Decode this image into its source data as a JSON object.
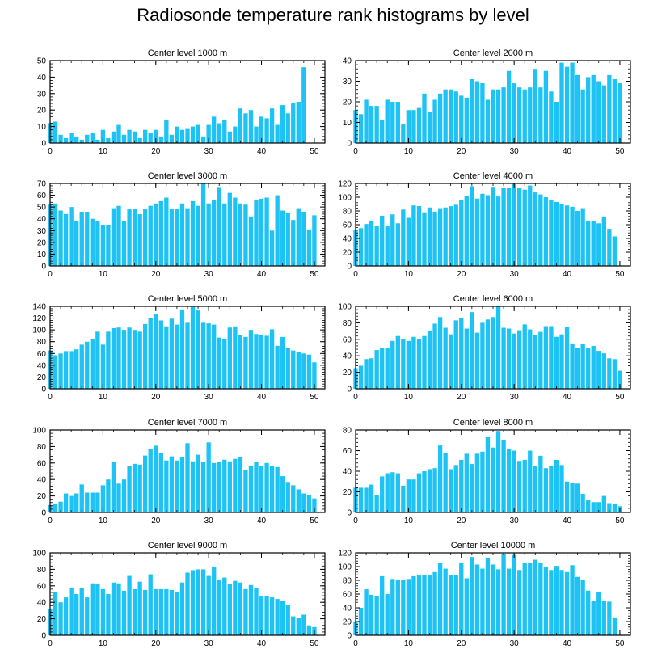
{
  "title": "Radiosonde temperature rank histograms by level",
  "colors": {
    "bar": "#1ec3f5",
    "bar_edge": "#ffffff",
    "axis": "#000000"
  },
  "chart_data": [
    {
      "type": "bar",
      "title": "Center level 1000 m",
      "xlim": [
        0,
        52
      ],
      "ylim": [
        0,
        50
      ],
      "xticks": [
        0,
        10,
        20,
        30,
        40,
        50
      ],
      "yticks": [
        0,
        10,
        20,
        30,
        40,
        50
      ],
      "values": [
        12,
        13,
        5,
        3,
        6,
        4,
        2,
        5,
        6,
        2,
        8,
        3,
        7,
        11,
        5,
        8,
        7,
        3,
        8,
        6,
        8,
        4,
        14,
        5,
        10,
        8,
        9,
        10,
        11,
        4,
        11,
        16,
        12,
        14,
        7,
        10,
        21,
        18,
        20,
        10,
        16,
        15,
        21,
        11,
        23,
        18,
        24,
        25,
        46
      ]
    },
    {
      "type": "bar",
      "title": "Center level 2000 m",
      "xlim": [
        0,
        52
      ],
      "ylim": [
        0,
        40
      ],
      "xticks": [
        0,
        10,
        20,
        30,
        40,
        50
      ],
      "yticks": [
        0,
        10,
        20,
        30,
        40
      ],
      "values": [
        16,
        14,
        21,
        18,
        18,
        11,
        21,
        20,
        20,
        9,
        16,
        16,
        17,
        24,
        15,
        21,
        24,
        26,
        26,
        25,
        23,
        22,
        31,
        30,
        29,
        21,
        26,
        26,
        27,
        35,
        29,
        27,
        26,
        27,
        36,
        27,
        35,
        25,
        20,
        39,
        37,
        39,
        33,
        26,
        32,
        33,
        30,
        28,
        33,
        31,
        29
      ]
    },
    {
      "type": "bar",
      "title": "Center level 3000 m",
      "xlim": [
        0,
        52
      ],
      "ylim": [
        0,
        70
      ],
      "xticks": [
        0,
        10,
        20,
        30,
        40,
        50
      ],
      "yticks": [
        0,
        10,
        20,
        30,
        40,
        50,
        60,
        70
      ],
      "values": [
        52,
        53,
        47,
        44,
        50,
        38,
        46,
        46,
        40,
        38,
        35,
        35,
        49,
        51,
        38,
        48,
        48,
        44,
        48,
        51,
        53,
        55,
        58,
        48,
        48,
        53,
        49,
        55,
        51,
        70,
        53,
        56,
        67,
        53,
        62,
        58,
        53,
        52,
        42,
        56,
        57,
        58,
        30,
        60,
        47,
        45,
        39,
        49,
        46,
        31,
        43
      ]
    },
    {
      "type": "bar",
      "title": "Center level 4000 m",
      "xlim": [
        0,
        52
      ],
      "ylim": [
        0,
        120
      ],
      "xticks": [
        0,
        10,
        20,
        30,
        40,
        50
      ],
      "yticks": [
        0,
        20,
        40,
        60,
        80,
        100,
        120
      ],
      "values": [
        53,
        55,
        61,
        65,
        58,
        73,
        58,
        75,
        62,
        82,
        70,
        88,
        87,
        78,
        85,
        79,
        84,
        85,
        87,
        89,
        96,
        102,
        116,
        98,
        105,
        103,
        115,
        101,
        114,
        113,
        119,
        114,
        111,
        117,
        107,
        104,
        100,
        96,
        93,
        90,
        88,
        86,
        80,
        84,
        66,
        65,
        62,
        72,
        54,
        43
      ]
    },
    {
      "type": "bar",
      "title": "Center level 5000 m",
      "xlim": [
        0,
        52
      ],
      "ylim": [
        0,
        140
      ],
      "xticks": [
        0,
        10,
        20,
        30,
        40,
        50
      ],
      "yticks": [
        0,
        20,
        40,
        60,
        80,
        100,
        120,
        140
      ],
      "values": [
        65,
        57,
        60,
        64,
        64,
        67,
        75,
        80,
        85,
        97,
        75,
        97,
        103,
        104,
        100,
        104,
        100,
        97,
        110,
        120,
        127,
        116,
        106,
        119,
        109,
        134,
        112,
        139,
        133,
        112,
        111,
        109,
        87,
        85,
        104,
        106,
        92,
        88,
        100,
        93,
        92,
        90,
        101,
        73,
        88,
        70,
        65,
        62,
        60,
        58,
        45
      ]
    },
    {
      "type": "bar",
      "title": "Center level 6000 m",
      "xlim": [
        0,
        52
      ],
      "ylim": [
        0,
        100
      ],
      "xticks": [
        0,
        10,
        20,
        30,
        40,
        50
      ],
      "yticks": [
        0,
        20,
        40,
        60,
        80,
        100
      ],
      "values": [
        25,
        28,
        36,
        37,
        47,
        50,
        50,
        58,
        64,
        60,
        58,
        63,
        60,
        64,
        70,
        79,
        87,
        74,
        66,
        83,
        86,
        73,
        93,
        68,
        80,
        84,
        87,
        100,
        74,
        73,
        67,
        71,
        78,
        72,
        65,
        69,
        76,
        76,
        63,
        66,
        75,
        55,
        50,
        54,
        49,
        52,
        46,
        43,
        37,
        36,
        22
      ]
    },
    {
      "type": "bar",
      "title": "Center level 7000 m",
      "xlim": [
        0,
        52
      ],
      "ylim": [
        0,
        100
      ],
      "xticks": [
        0,
        10,
        20,
        30,
        40,
        50
      ],
      "yticks": [
        0,
        20,
        40,
        60,
        80,
        100
      ],
      "values": [
        9,
        10,
        13,
        23,
        20,
        23,
        34,
        24,
        24,
        24,
        33,
        40,
        61,
        35,
        40,
        56,
        59,
        58,
        69,
        77,
        81,
        72,
        63,
        68,
        63,
        67,
        84,
        62,
        70,
        61,
        85,
        60,
        61,
        64,
        62,
        65,
        67,
        52,
        57,
        61,
        56,
        60,
        56,
        55,
        44,
        37,
        33,
        28,
        23,
        21,
        17
      ]
    },
    {
      "type": "bar",
      "title": "Center level 8000 m",
      "xlim": [
        0,
        52
      ],
      "ylim": [
        0,
        80
      ],
      "xticks": [
        0,
        10,
        20,
        30,
        40,
        50
      ],
      "yticks": [
        0,
        20,
        40,
        60,
        80
      ],
      "values": [
        24,
        24,
        24,
        27,
        17,
        35,
        38,
        39,
        38,
        26,
        32,
        32,
        38,
        40,
        42,
        43,
        65,
        58,
        42,
        46,
        51,
        57,
        47,
        57,
        59,
        73,
        63,
        79,
        70,
        62,
        60,
        50,
        51,
        60,
        45,
        55,
        43,
        45,
        51,
        46,
        30,
        29,
        28,
        18,
        12,
        10,
        10,
        16,
        9,
        8,
        6
      ]
    },
    {
      "type": "bar",
      "title": "Center level 9000 m",
      "xlim": [
        0,
        52
      ],
      "ylim": [
        0,
        100
      ],
      "xticks": [
        0,
        10,
        20,
        30,
        40,
        50
      ],
      "yticks": [
        0,
        20,
        40,
        60,
        80,
        100
      ],
      "values": [
        32,
        52,
        40,
        46,
        58,
        50,
        57,
        46,
        63,
        62,
        56,
        50,
        64,
        63,
        54,
        72,
        56,
        65,
        55,
        74,
        56,
        56,
        56,
        55,
        53,
        64,
        76,
        79,
        80,
        80,
        72,
        83,
        67,
        70,
        62,
        66,
        64,
        56,
        61,
        57,
        47,
        48,
        46,
        44,
        42,
        37,
        23,
        21,
        25,
        12,
        10
      ]
    },
    {
      "type": "bar",
      "title": "Center level 10000 m",
      "xlim": [
        0,
        52
      ],
      "ylim": [
        0,
        120
      ],
      "xticks": [
        0,
        10,
        20,
        30,
        40,
        50
      ],
      "yticks": [
        0,
        20,
        40,
        60,
        80,
        100,
        120
      ],
      "values": [
        20,
        40,
        67,
        59,
        57,
        86,
        60,
        82,
        80,
        80,
        82,
        86,
        87,
        88,
        87,
        92,
        105,
        97,
        88,
        88,
        105,
        83,
        114,
        103,
        97,
        113,
        103,
        96,
        118,
        97,
        117,
        95,
        105,
        105,
        110,
        106,
        100,
        95,
        101,
        95,
        92,
        102,
        85,
        80,
        65,
        50,
        63,
        50,
        49,
        26
      ]
    }
  ]
}
